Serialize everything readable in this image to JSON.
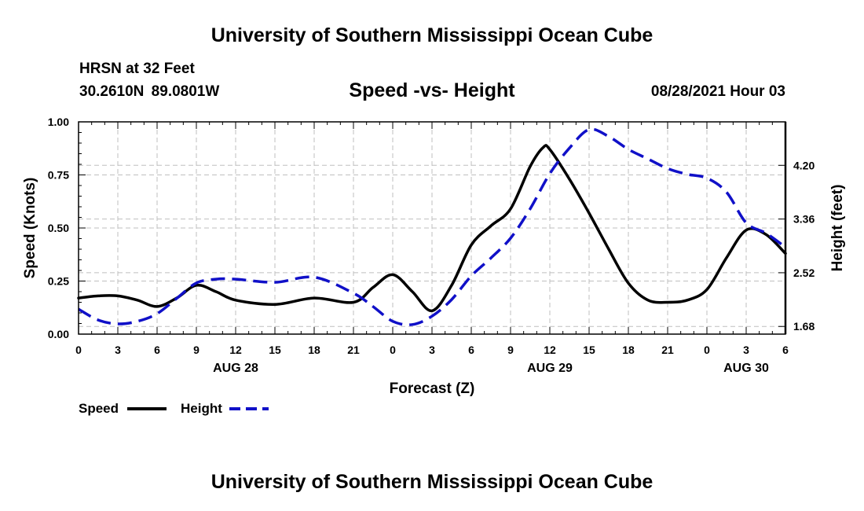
{
  "header": {
    "title": "University of Southern Mississippi Ocean Cube",
    "station": "HRSN at 32 Feet",
    "coords": "30.2610N  89.0801W",
    "subtitle": "Speed -vs- Height",
    "runtime": "08/28/2021 Hour 03"
  },
  "footer": {
    "title": "University of Southern Mississippi Ocean Cube"
  },
  "legend": {
    "speed_label": "Speed",
    "height_label": "Height"
  },
  "colors": {
    "speed": "#000000",
    "height": "#1010c8",
    "grid": "#bfbfbf"
  },
  "chart_data": {
    "type": "line",
    "title": "Speed -vs- Height",
    "xlabel": "Forecast (Z)",
    "ylabel": "Speed (Knots)",
    "y2label": "Height (feet)",
    "x_unit": "hours since AUG 28 00Z",
    "xlim": [
      0,
      54
    ],
    "ylim": [
      0,
      1.0
    ],
    "y2lim": [
      1.56,
      4.88
    ],
    "x_ticks": [
      0,
      3,
      6,
      9,
      12,
      15,
      18,
      21,
      24,
      27,
      30,
      33,
      36,
      39,
      42,
      45,
      48,
      51,
      54
    ],
    "x_tick_labels": [
      "0",
      "3",
      "6",
      "9",
      "12",
      "15",
      "18",
      "21",
      "0",
      "3",
      "6",
      "9",
      "12",
      "15",
      "18",
      "21",
      "0",
      "3",
      "6"
    ],
    "date_labels": [
      {
        "x": 12,
        "label": "AUG 28"
      },
      {
        "x": 36,
        "label": "AUG 29"
      },
      {
        "x": 51,
        "label": "AUG 30"
      }
    ],
    "y_ticks": [
      0,
      0.25,
      0.5,
      0.75,
      1.0
    ],
    "y_tick_labels": [
      "0.00",
      "0.25",
      "0.50",
      "0.75",
      "1.00"
    ],
    "y2_ticks": [
      1.68,
      2.52,
      3.36,
      4.2
    ],
    "y2_tick_labels": [
      "1.68",
      "2.52",
      "3.36",
      "4.20"
    ],
    "grid": true,
    "series": [
      {
        "name": "Speed",
        "axis": "left",
        "style": "solid",
        "x": [
          0,
          1.5,
          3,
          4.5,
          6,
          7.5,
          9,
          10.5,
          12,
          15,
          18,
          21,
          22.5,
          24,
          25.5,
          27,
          28.5,
          30,
          31.5,
          33,
          34.5,
          35.5,
          36,
          37.5,
          39,
          40.5,
          42,
          43.5,
          45,
          46.5,
          48,
          49.5,
          51,
          52.5,
          54
        ],
        "values": [
          0.17,
          0.18,
          0.18,
          0.16,
          0.13,
          0.17,
          0.23,
          0.2,
          0.16,
          0.14,
          0.17,
          0.15,
          0.22,
          0.28,
          0.2,
          0.11,
          0.23,
          0.42,
          0.51,
          0.59,
          0.79,
          0.88,
          0.87,
          0.73,
          0.57,
          0.4,
          0.24,
          0.16,
          0.15,
          0.16,
          0.21,
          0.36,
          0.49,
          0.47,
          0.38
        ]
      },
      {
        "name": "Height",
        "axis": "right",
        "style": "dashed",
        "x": [
          0,
          1.5,
          3,
          4.5,
          6,
          7.5,
          9,
          10.5,
          12,
          15,
          18,
          21,
          22.5,
          24,
          25.5,
          27,
          28.5,
          30,
          31.5,
          33,
          34.5,
          36,
          37.5,
          39,
          40.5,
          42,
          43.5,
          45,
          46.5,
          48,
          49.5,
          51,
          52.5,
          54
        ],
        "values": [
          1.95,
          1.78,
          1.72,
          1.76,
          1.88,
          2.12,
          2.36,
          2.42,
          2.42,
          2.37,
          2.45,
          2.2,
          1.99,
          1.76,
          1.71,
          1.84,
          2.1,
          2.47,
          2.75,
          3.06,
          3.52,
          4.07,
          4.47,
          4.76,
          4.65,
          4.45,
          4.3,
          4.15,
          4.06,
          4.0,
          3.78,
          3.3,
          3.14,
          2.92
        ]
      }
    ]
  }
}
